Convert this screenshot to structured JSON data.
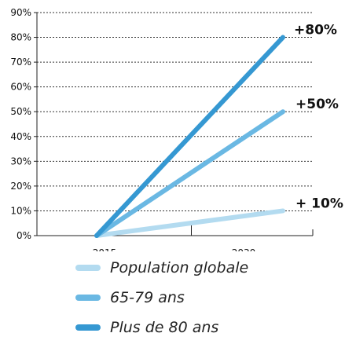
{
  "chart_data": {
    "type": "line",
    "x": [
      "2015",
      "2030"
    ],
    "y_ticks": [
      "0%",
      "10%",
      "20%",
      "30%",
      "40%",
      "50%",
      "60%",
      "70%",
      "80%",
      "90%"
    ],
    "ylim": [
      0,
      90
    ],
    "grid": true,
    "legend_position": "bottom",
    "series": [
      {
        "name": "Population globale",
        "values": [
          0,
          10
        ],
        "label": "+ 10%",
        "color": "#b3dbf0"
      },
      {
        "name": "65-79 ans",
        "values": [
          0,
          50
        ],
        "label": "+50%",
        "color": "#6ab8e3"
      },
      {
        "name": "Plus de 80 ans",
        "values": [
          0,
          80
        ],
        "label": "+80%",
        "color": "#3598d2"
      }
    ]
  }
}
